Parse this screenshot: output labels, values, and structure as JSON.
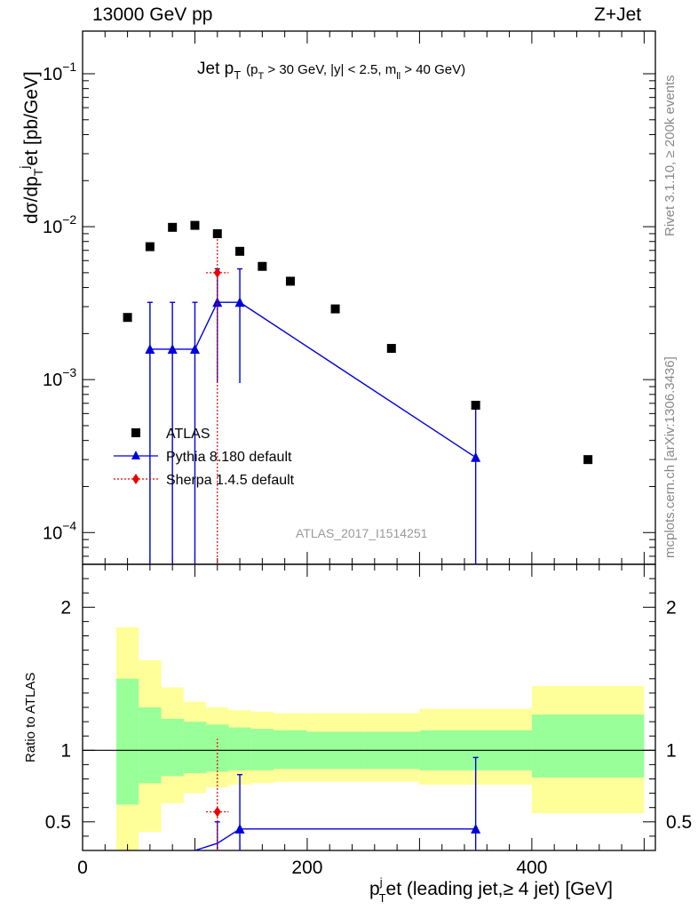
{
  "header": {
    "left": "13000 GeV pp",
    "right": "Z+Jet"
  },
  "side_labels": {
    "rivet": "Rivet 3.1.10, ≥ 200k events",
    "mcplots": "mcplots.cern.ch [arXiv:1306.3436]"
  },
  "plot_title": {
    "main": "Jet p",
    "main_sub": "T",
    "cuts_a": "(p",
    "cuts_a_sub": "T",
    "cuts_b": " > 30 GeV, |y| < 2.5, m",
    "cuts_b_sub": "ll",
    "cuts_c": " > 40 GeV)"
  },
  "analysis_tag": "ATLAS_2017_I1514251",
  "ylabel_top": {
    "a": "dσ/dp",
    "a_sub": "T",
    "a_sup": "j",
    "b": "et [pb/GeV]"
  },
  "ylabel_bottom": "Ratio to ATLAS",
  "xlabel": {
    "a": "p",
    "a_sup": "j",
    "a_sub": "T",
    "b": "et (leading jet,≥ 4 jet) [GeV]"
  },
  "legend": [
    {
      "label": "ATLAS",
      "marker": "square",
      "color": "#000000"
    },
    {
      "label": "Pythia 8.180 default",
      "marker": "triangle",
      "color": "#0000dd"
    },
    {
      "label": "Sherpa 1.4.5 default",
      "marker": "diamond",
      "color": "#ee0000"
    }
  ],
  "colors": {
    "band_inner": "#99ff99",
    "band_outer": "#ffff99",
    "pythia": "#0000dd",
    "sherpa": "#ee0000",
    "data": "#000000"
  },
  "chart_data": {
    "type": "scatter",
    "x_axis": {
      "range": [
        0,
        510
      ],
      "ticks": [
        0,
        200,
        400
      ],
      "tick_labels": [
        "0",
        "200",
        "400"
      ]
    },
    "top_y_axis": {
      "scale": "log",
      "range": [
        6.2e-05,
        0.19
      ],
      "ticks": [
        0.0001,
        0.001,
        0.01,
        0.1
      ],
      "tick_labels": [
        [
          "10",
          "−4"
        ],
        [
          "10",
          "−3"
        ],
        [
          "10",
          "−2"
        ],
        [
          "10",
          "−1"
        ]
      ]
    },
    "ratio_y_axis": {
      "range": [
        0.3,
        2.3
      ],
      "ticks": [
        0.5,
        1,
        2
      ],
      "tick_labels": [
        "0.5",
        "1",
        "2"
      ]
    },
    "data_series": {
      "name": "ATLAS",
      "x": [
        40,
        60,
        80,
        100,
        120,
        140,
        160,
        185,
        225,
        275,
        350,
        450
      ],
      "y": [
        0.00255,
        0.0074,
        0.0099,
        0.0102,
        0.009,
        0.0069,
        0.0055,
        0.0044,
        0.0029,
        0.0016,
        0.00068,
        0.0003
      ]
    },
    "pythia": {
      "name": "Pythia 8.180 default",
      "x": [
        60,
        80,
        100,
        120,
        140,
        350
      ],
      "y": [
        0.00158,
        0.00158,
        0.00158,
        0.0032,
        0.0032,
        0.00031
      ],
      "ylo": [
        1e-05,
        1e-05,
        1e-05,
        0.00095,
        0.00095,
        1e-05
      ],
      "yhi": [
        0.0032,
        0.0032,
        0.0032,
        0.0053,
        0.0053,
        0.00068
      ]
    },
    "sherpa": {
      "name": "Sherpa 1.4.5 default",
      "x": [
        120
      ],
      "y": [
        0.005
      ],
      "xerr": [
        10
      ],
      "ylo": [
        1e-05
      ],
      "yhi": [
        0.0095
      ]
    },
    "ratio_bands": [
      {
        "xlo": 30,
        "xhi": 50,
        "inner_lo": 0.62,
        "inner_hi": 1.5,
        "outer_lo": 0.2,
        "outer_hi": 1.86
      },
      {
        "xlo": 50,
        "xhi": 70,
        "inner_lo": 0.77,
        "inner_hi": 1.3,
        "outer_lo": 0.43,
        "outer_hi": 1.63
      },
      {
        "xlo": 70,
        "xhi": 90,
        "inner_lo": 0.82,
        "inner_hi": 1.22,
        "outer_lo": 0.63,
        "outer_hi": 1.44
      },
      {
        "xlo": 90,
        "xhi": 110,
        "inner_lo": 0.84,
        "inner_hi": 1.2,
        "outer_lo": 0.7,
        "outer_hi": 1.34
      },
      {
        "xlo": 110,
        "xhi": 130,
        "inner_lo": 0.85,
        "inner_hi": 1.18,
        "outer_lo": 0.74,
        "outer_hi": 1.3
      },
      {
        "xlo": 130,
        "xhi": 150,
        "inner_lo": 0.86,
        "inner_hi": 1.16,
        "outer_lo": 0.76,
        "outer_hi": 1.28
      },
      {
        "xlo": 150,
        "xhi": 170,
        "inner_lo": 0.86,
        "inner_hi": 1.15,
        "outer_lo": 0.77,
        "outer_hi": 1.27
      },
      {
        "xlo": 170,
        "xhi": 200,
        "inner_lo": 0.87,
        "inner_hi": 1.14,
        "outer_lo": 0.78,
        "outer_hi": 1.26
      },
      {
        "xlo": 200,
        "xhi": 250,
        "inner_lo": 0.87,
        "inner_hi": 1.13,
        "outer_lo": 0.78,
        "outer_hi": 1.26
      },
      {
        "xlo": 250,
        "xhi": 300,
        "inner_lo": 0.87,
        "inner_hi": 1.13,
        "outer_lo": 0.78,
        "outer_hi": 1.26
      },
      {
        "xlo": 300,
        "xhi": 400,
        "inner_lo": 0.86,
        "inner_hi": 1.14,
        "outer_lo": 0.76,
        "outer_hi": 1.29
      },
      {
        "xlo": 400,
        "xhi": 500,
        "inner_lo": 0.81,
        "inner_hi": 1.25,
        "outer_lo": 0.56,
        "outer_hi": 1.45
      }
    ],
    "ratio_pythia": {
      "x": [
        120,
        140,
        350
      ],
      "y": [
        0.35,
        0.45,
        0.45
      ],
      "ylo": [
        0.3,
        0.3,
        0.3
      ],
      "yhi": [
        0.5,
        0.83,
        0.95
      ]
    },
    "ratio_sherpa": {
      "x": [
        120
      ],
      "y": [
        0.57
      ],
      "xerr": [
        10
      ],
      "ylo": [
        0.3
      ],
      "yhi": [
        1.08
      ]
    },
    "reference_line": 1
  }
}
